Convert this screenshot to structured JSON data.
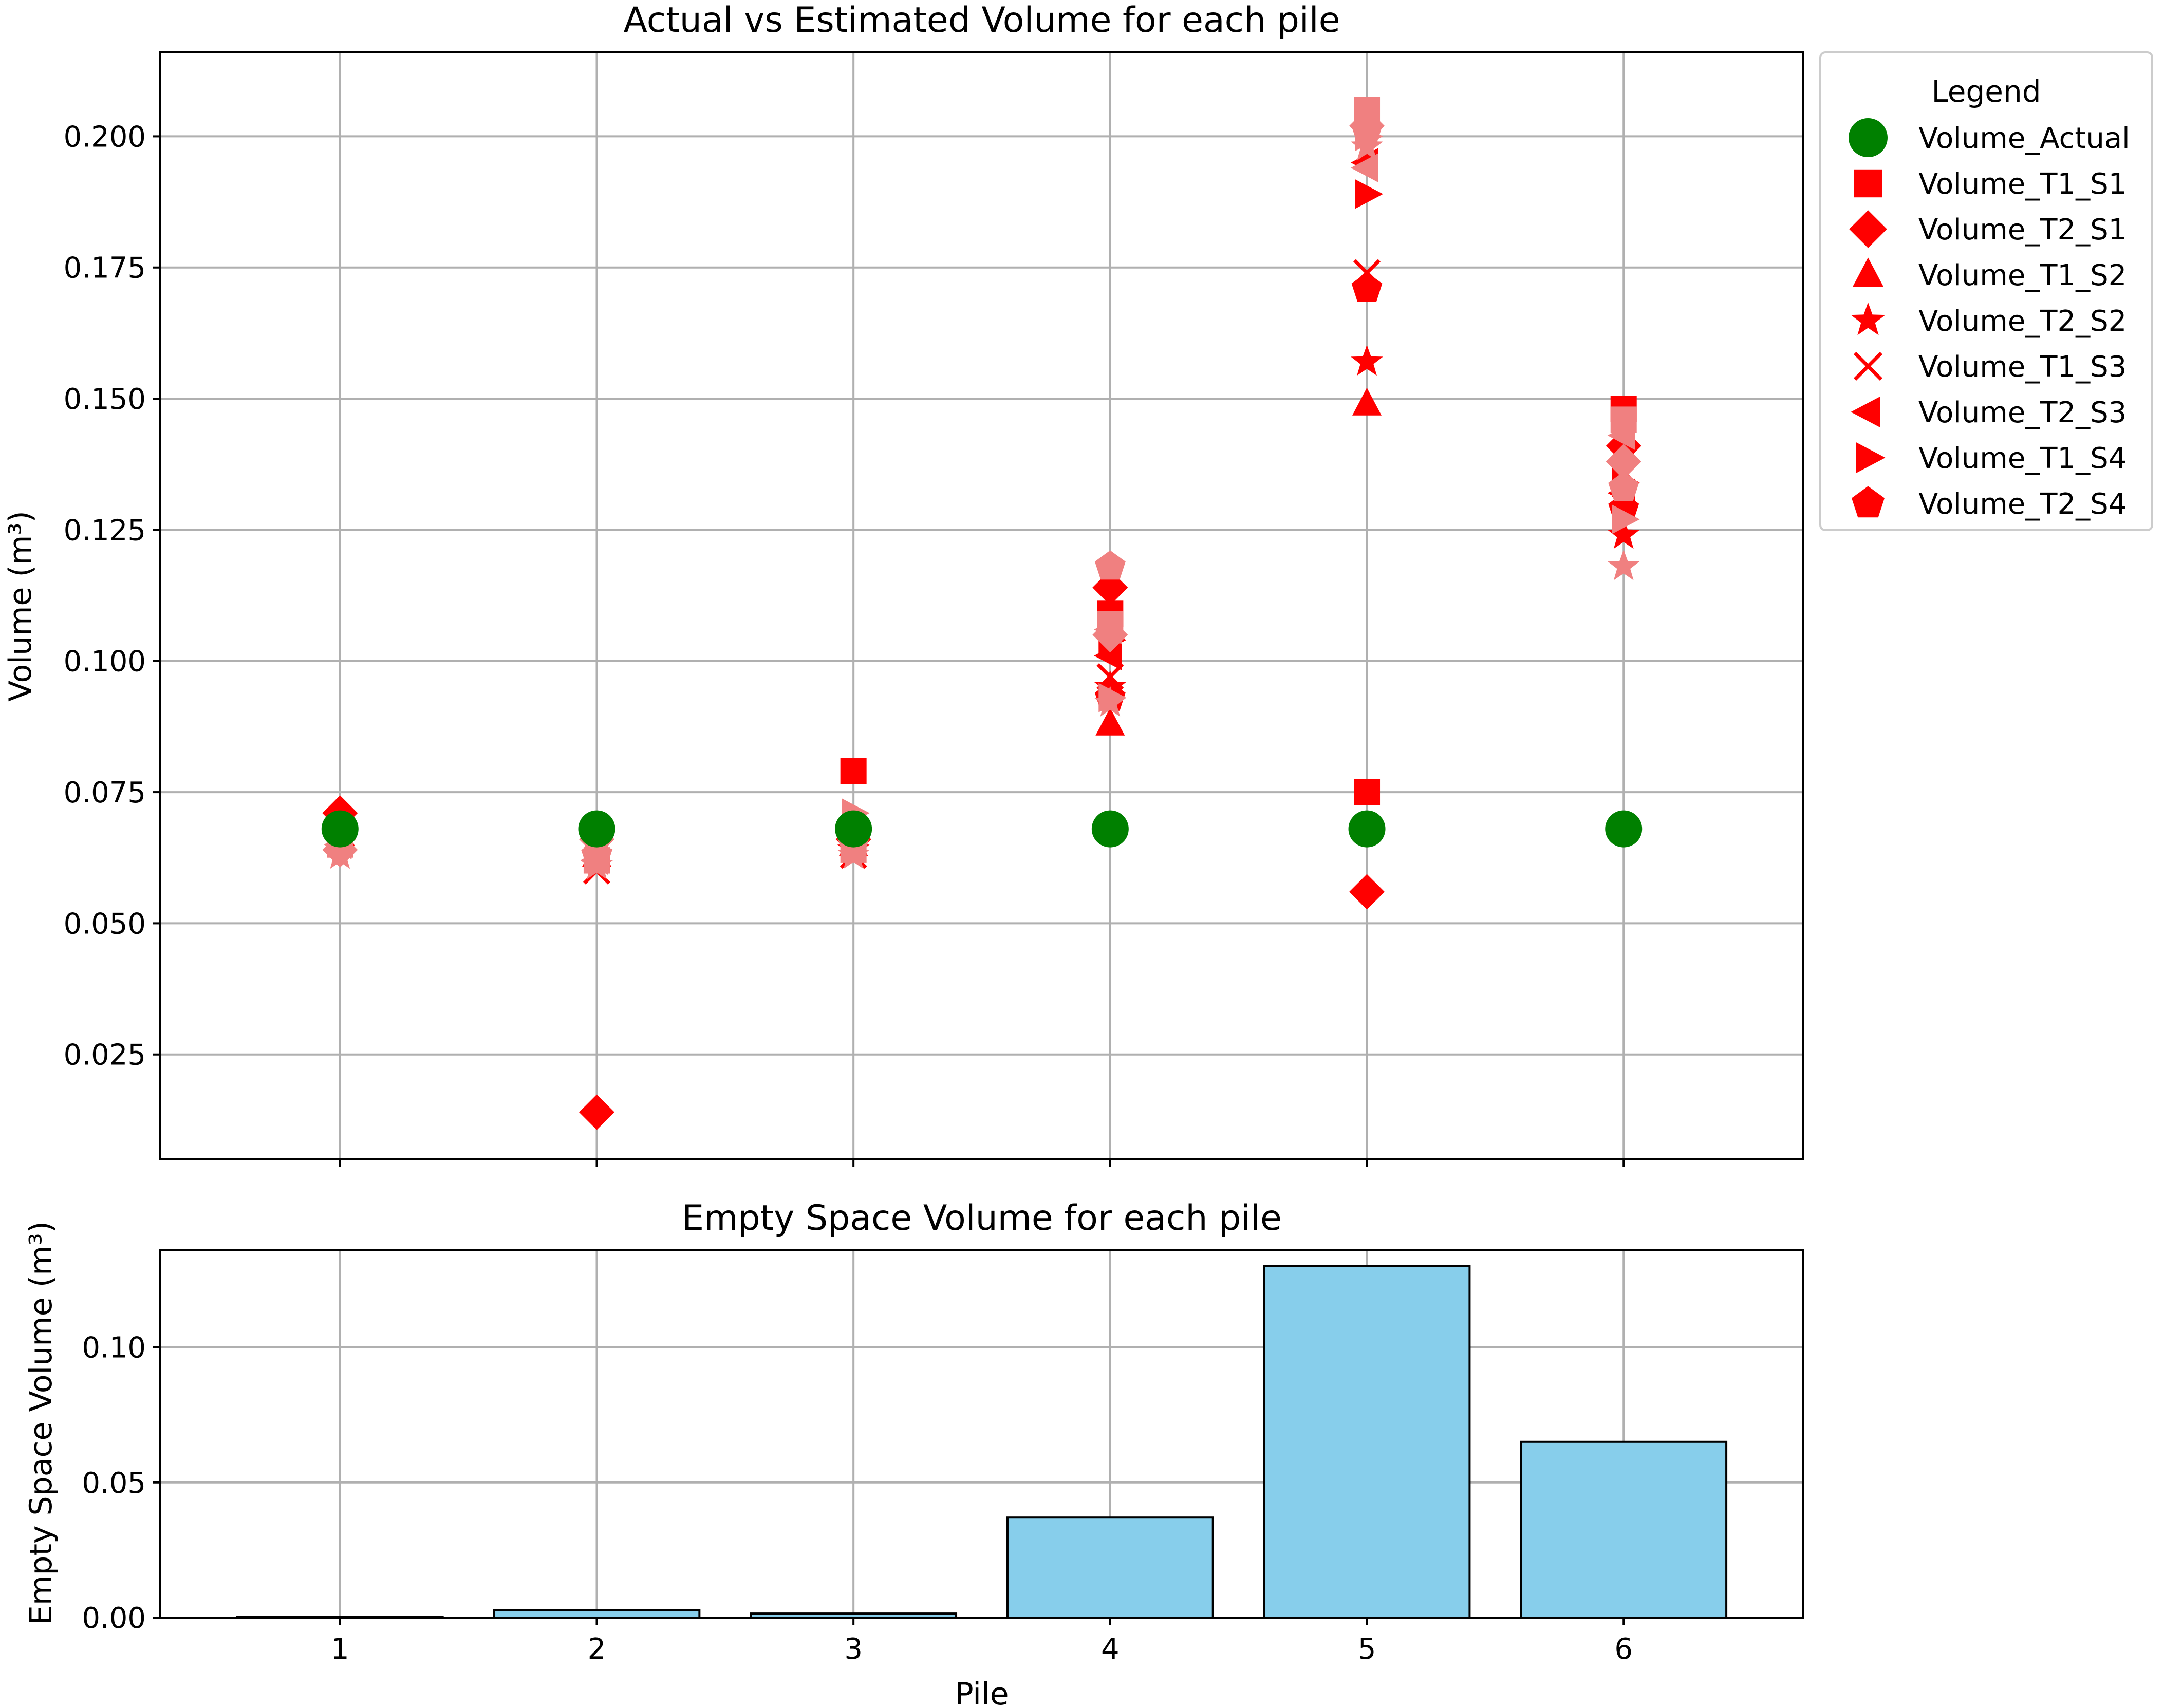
{
  "chart_data": [
    {
      "type": "scatter",
      "title": "Actual vs Estimated Volume for each pile",
      "xlabel": "",
      "ylabel": "Volume (m³)",
      "x": [
        1,
        2,
        3,
        4,
        5,
        6
      ],
      "xlim": [
        0.3,
        6.7
      ],
      "ylim": [
        0.005,
        0.216
      ],
      "yticks": [
        0.025,
        0.05,
        0.075,
        0.1,
        0.125,
        0.15,
        0.175,
        0.2
      ],
      "ytick_labels": [
        "0.025",
        "0.050",
        "0.075",
        "0.100",
        "0.125",
        "0.150",
        "0.175",
        "0.200"
      ],
      "grid": true,
      "legend": {
        "title": "Legend",
        "placement": "outside upper right",
        "entries": [
          "Volume_Actual",
          "Volume_T1_S1",
          "Volume_T2_S1",
          "Volume_T1_S2",
          "Volume_T2_S2",
          "Volume_T1_S3",
          "Volume_T2_S3",
          "Volume_T1_S4",
          "Volume_T2_S4"
        ]
      },
      "series": [
        {
          "name": "Volume_Actual",
          "marker": "circle",
          "color": "#008000",
          "x": [
            1,
            2,
            3,
            4,
            5,
            6
          ],
          "y": [
            0.068,
            0.068,
            0.068,
            0.068,
            0.068,
            0.068
          ]
        },
        {
          "name": "Volume_T1_S1",
          "marker": "square",
          "color": "#ff0000",
          "x": [
            1,
            2,
            3,
            4,
            5,
            6
          ],
          "y": [
            0.068,
            0.062,
            0.079,
            0.109,
            0.075,
            0.148
          ]
        },
        {
          "name": "Volume_T2_S1",
          "marker": "diamond",
          "color": "#ff0000",
          "x": [
            1,
            2,
            3,
            4,
            5,
            6
          ],
          "y": [
            0.071,
            0.014,
            0.066,
            0.114,
            0.056,
            0.141
          ]
        },
        {
          "name": "Volume_T1_S2",
          "marker": "triangle-up",
          "color": "#ff0000",
          "x": [
            1,
            2,
            3,
            4,
            5,
            6
          ],
          "y": [
            0.067,
            0.063,
            0.065,
            0.088,
            0.149,
            0.143
          ]
        },
        {
          "name": "Volume_T2_S2",
          "marker": "star",
          "color": "#ff0000",
          "x": [
            1,
            2,
            3,
            4,
            5,
            6
          ],
          "y": [
            0.066,
            0.061,
            0.064,
            0.095,
            0.157,
            0.124
          ]
        },
        {
          "name": "Volume_T1_S3",
          "marker": "x",
          "color": "#ff0000",
          "x": [
            1,
            2,
            3,
            4,
            5,
            6
          ],
          "y": [
            0.067,
            0.06,
            0.063,
            0.097,
            0.174,
            0.136
          ]
        },
        {
          "name": "Volume_T2_S3",
          "marker": "triangle-left",
          "color": "#ff0000",
          "x": [
            1,
            2,
            3,
            4,
            5,
            6
          ],
          "y": [
            0.068,
            0.062,
            0.067,
            0.101,
            0.195,
            0.132
          ]
        },
        {
          "name": "Volume_T1_S4",
          "marker": "triangle-right",
          "color": "#ff0000",
          "x": [
            1,
            2,
            3,
            4,
            5,
            6
          ],
          "y": [
            0.069,
            0.064,
            0.069,
            0.104,
            0.189,
            0.134
          ]
        },
        {
          "name": "Volume_T2_S4",
          "marker": "pentagon",
          "color": "#ff0000",
          "x": [
            1,
            2,
            3,
            4,
            5,
            6
          ],
          "y": [
            0.068,
            0.063,
            0.066,
            0.093,
            0.171,
            0.129
          ]
        },
        {
          "name": "",
          "marker": "square",
          "color": "#f08080",
          "x": [
            1,
            2,
            3,
            4,
            5,
            6
          ],
          "y": [
            0.065,
            0.062,
            0.064,
            0.107,
            0.205,
            0.146
          ]
        },
        {
          "name": "",
          "marker": "diamond",
          "color": "#f08080",
          "x": [
            1,
            2,
            3,
            4,
            5,
            6
          ],
          "y": [
            0.064,
            0.066,
            0.068,
            0.105,
            0.202,
            0.138
          ]
        },
        {
          "name": "",
          "marker": "triangle-right",
          "color": "#f08080",
          "x": [
            1,
            2,
            3,
            4,
            5,
            6
          ],
          "y": [
            0.066,
            0.064,
            0.071,
            0.093,
            0.2,
            0.127
          ]
        },
        {
          "name": "",
          "marker": "star",
          "color": "#f08080",
          "x": [
            1,
            2,
            3,
            4,
            5,
            6
          ],
          "y": [
            0.063,
            0.061,
            0.063,
            0.092,
            0.198,
            0.118
          ]
        },
        {
          "name": "",
          "marker": "pentagon",
          "color": "#f08080",
          "x": [
            1,
            2,
            3,
            4,
            5,
            6
          ],
          "y": [
            0.066,
            0.063,
            0.065,
            0.118,
            0.201,
            0.133
          ]
        },
        {
          "name": "",
          "marker": "triangle-left",
          "color": "#f08080",
          "x": [
            1,
            2,
            3,
            4,
            5,
            6
          ],
          "y": [
            0.065,
            0.062,
            0.066,
            0.106,
            0.194,
            0.143
          ]
        }
      ]
    },
    {
      "type": "bar",
      "title": "Empty Space Volume for each pile",
      "xlabel": "Pile",
      "ylabel": "Empty Space Volume (m³)",
      "categories": [
        "1",
        "2",
        "3",
        "4",
        "5",
        "6"
      ],
      "values": [
        0.0003,
        0.0028,
        0.0015,
        0.037,
        0.13,
        0.065
      ],
      "ylim": [
        0,
        0.136
      ],
      "yticks": [
        0.0,
        0.05,
        0.1
      ],
      "ytick_labels": [
        "0.00",
        "0.05",
        "0.10"
      ],
      "bar_color": "#87ceeb",
      "edge_color": "#000000",
      "grid": true
    }
  ]
}
